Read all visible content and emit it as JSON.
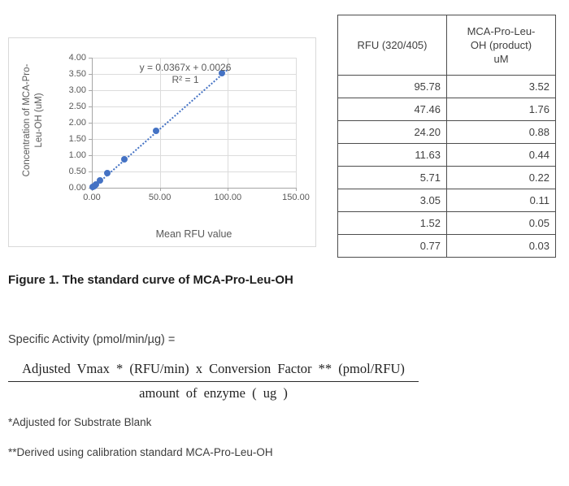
{
  "chart_data": {
    "type": "scatter",
    "title": "Figure 1. The standard curve of MCA-Pro-Leu-OH",
    "x": [
      0.77,
      1.52,
      3.05,
      5.71,
      11.63,
      24.2,
      47.46,
      95.78
    ],
    "y": [
      0.03,
      0.05,
      0.11,
      0.22,
      0.44,
      0.88,
      1.76,
      3.52
    ],
    "xlabel": "Mean RFU value",
    "ylabel": "Concentration of MCA-Pro-Leu-OH (uM)",
    "ylabel_line1": "Concentration of MCA-Pro-",
    "ylabel_line2": "Leu-OH (uM)",
    "xlim": [
      0,
      150
    ],
    "ylim": [
      0,
      4
    ],
    "x_ticks": [
      0,
      50,
      100,
      150
    ],
    "y_ticks": [
      0,
      0.5,
      1,
      1.5,
      2,
      2.5,
      3,
      3.5,
      4
    ],
    "grid": true,
    "legend": "none",
    "marker_color": "#4472C4",
    "trendline": {
      "style": "dotted",
      "slope": 0.0367,
      "intercept": 0.0026,
      "x_start": 0.5,
      "x_end": 99,
      "equation_label": "y = 0.0367x + 0.0026",
      "r_squared_label": "R² = 1"
    }
  },
  "table": {
    "headers": [
      "RFU (320/405)",
      "MCA-Pro-Leu-\nOH (product)\nuM"
    ],
    "rows": [
      [
        "95.78",
        "3.52"
      ],
      [
        "47.46",
        "1.76"
      ],
      [
        "24.20",
        "0.88"
      ],
      [
        "11.63",
        "0.44"
      ],
      [
        "5.71",
        "0.22"
      ],
      [
        "3.05",
        "0.11"
      ],
      [
        "1.52",
        "0.05"
      ],
      [
        "0.77",
        "0.03"
      ]
    ]
  },
  "caption": "Figure 1. The standard curve of MCA-Pro-Leu-OH",
  "formula": {
    "intro": "Specific Activity (pmol/min/µg) =",
    "numerator": "Adjusted Vmax * (RFU/min) x Conversion Factor ** (pmol/RFU)",
    "denominator": "amount of enzyme ( ug )"
  },
  "footnotes": [
    "*Adjusted for Substrate Blank",
    "**Derived using calibration standard MCA-Pro-Leu-OH"
  ]
}
